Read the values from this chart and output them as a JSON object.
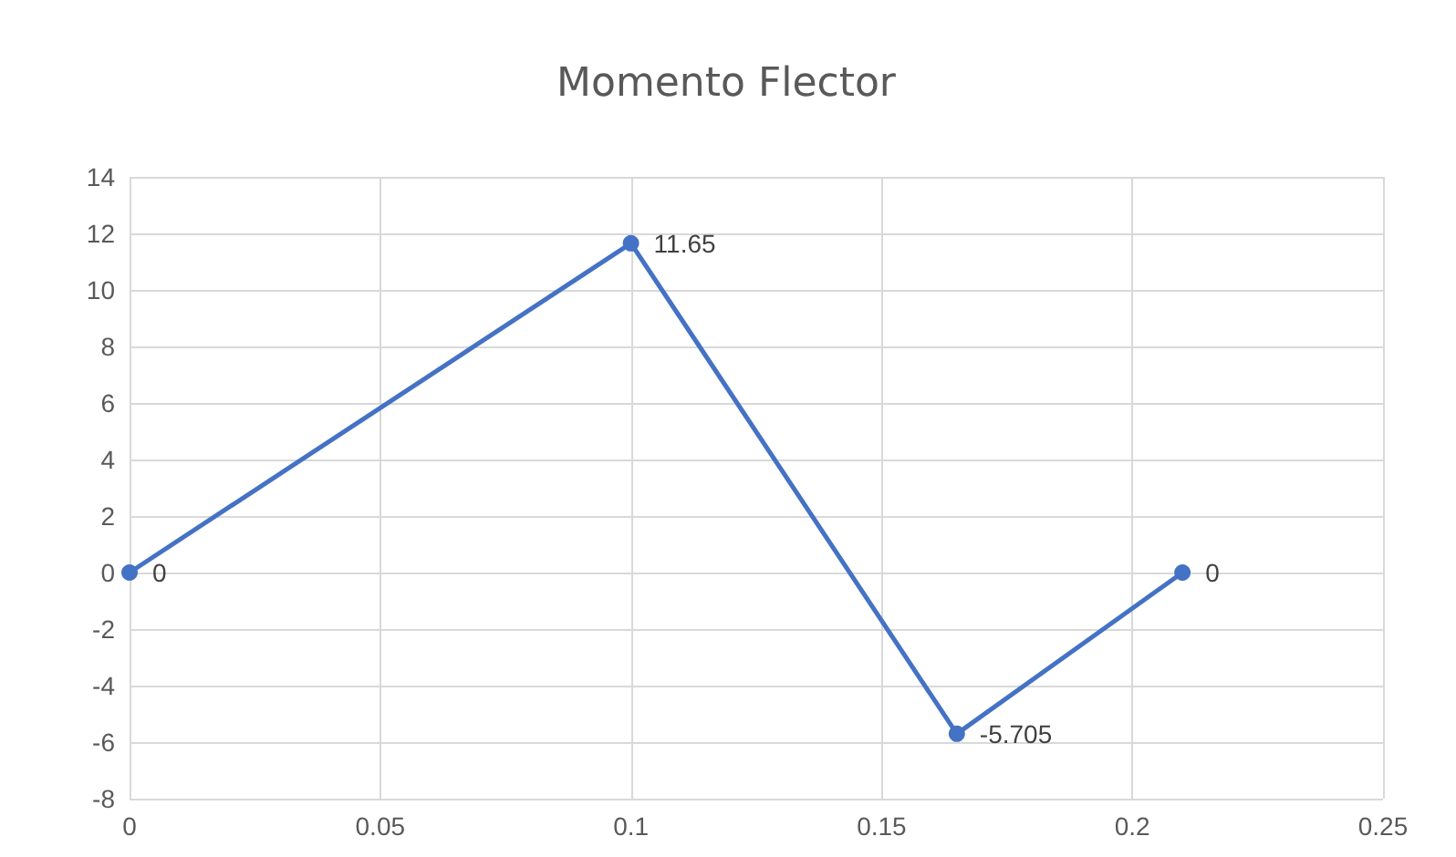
{
  "chart_data": {
    "type": "line",
    "title": "Momento Flector",
    "x": [
      0,
      0.1,
      0.165,
      0.21
    ],
    "series": [
      {
        "color": "#4472c4",
        "values": [
          0,
          11.65,
          -5.705,
          0
        ]
      }
    ],
    "xlim": [
      0,
      0.25
    ],
    "xticks": [
      0,
      0.05,
      0.1,
      0.15,
      0.2,
      0.25
    ],
    "ylim": [
      -8,
      14
    ],
    "yticks": [
      -8,
      -6,
      -4,
      -2,
      0,
      2,
      4,
      6,
      8,
      10,
      12,
      14
    ],
    "grid": true,
    "marker": "circle",
    "line_style": "solid",
    "data_labels": true
  }
}
